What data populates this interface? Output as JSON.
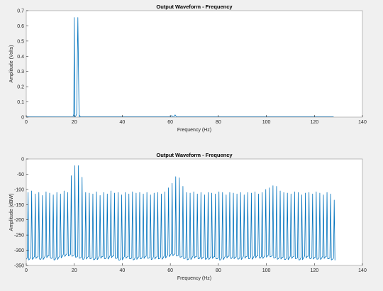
{
  "colors": {
    "series": "#0072bd",
    "background": "#f0f0f0",
    "axes_bg": "#ffffff",
    "axis": "#262626"
  },
  "chart_data": [
    {
      "type": "line",
      "title": "Output Waveform - Frequency",
      "xlabel": "Frequency (Hz)",
      "ylabel": "Amplitude (Volts)",
      "xlim": [
        0,
        140
      ],
      "ylim": [
        0,
        0.7
      ],
      "xticks": [
        0,
        20,
        40,
        60,
        80,
        100,
        120,
        140
      ],
      "yticks": [
        0,
        0.1,
        0.2,
        0.3,
        0.4,
        0.5,
        0.6,
        0.7
      ],
      "grid": false,
      "series": [
        {
          "x": [
            0,
            19.5,
            19.8,
            20,
            20.2,
            20.5,
            21,
            21.5,
            22,
            22.3,
            22.5,
            60,
            60.6,
            61,
            61.5,
            62,
            62.5,
            63,
            128
          ],
          "y": [
            0.002,
            0.003,
            0.02,
            0.655,
            0.003,
            0.003,
            0.02,
            0.655,
            0.003,
            0.01,
            0.002,
            0.002,
            0.01,
            0.002,
            0.003,
            0.015,
            0.003,
            0.002,
            0.002
          ]
        }
      ]
    },
    {
      "type": "line",
      "title": "Output Waveform - Frequency",
      "xlabel": "Frequency (Hz)",
      "ylabel": "Amplitude (dBW)",
      "xlim": [
        0,
        140
      ],
      "ylim": [
        -350,
        0
      ],
      "xticks": [
        0,
        20,
        40,
        60,
        80,
        100,
        120,
        140
      ],
      "yticks": [
        0,
        -50,
        -100,
        -150,
        -200,
        -250,
        -300,
        -350
      ],
      "grid": false,
      "series": [
        {
          "x_start": 0,
          "x_step": 1.5,
          "spike_values": [
            -110,
            -105,
            -115,
            -110,
            -120,
            -108,
            -112,
            -118,
            -110,
            -115,
            -105,
            -110,
            -55,
            -22,
            -22,
            -60,
            -110,
            -112,
            -115,
            -108,
            -120,
            -110,
            -115,
            -105,
            -112,
            -110,
            -118,
            -110,
            -115,
            -108,
            -112,
            -110,
            -115,
            -110,
            -118,
            -112,
            -110,
            -115,
            -108,
            -95,
            -80,
            -58,
            -62,
            -90,
            -110,
            -112,
            -108,
            -115,
            -110,
            -118,
            -110,
            -112,
            -115,
            -108,
            -110,
            -118,
            -110,
            -112,
            -115,
            -110,
            -118,
            -110,
            -112,
            -108,
            -115,
            -110,
            -100,
            -95,
            -88,
            -90,
            -105,
            -110,
            -112,
            -115,
            -108,
            -110,
            -118,
            -112,
            -110,
            -115,
            -108,
            -112,
            -118,
            -110,
            -115,
            -135
          ],
          "floor_values": [
            -330,
            -328,
            -326,
            -322,
            -330,
            -325,
            -318,
            -327,
            -331,
            -324,
            -320,
            -315,
            -316,
            -318,
            -322,
            -325,
            -329,
            -323,
            -327,
            -330,
            -326,
            -321,
            -328,
            -324,
            -319,
            -327,
            -332,
            -325,
            -322,
            -328,
            -330,
            -324,
            -327,
            -321,
            -326,
            -329,
            -323,
            -328,
            -325,
            -320,
            -316,
            -314,
            -318,
            -322,
            -327,
            -330,
            -325,
            -321,
            -328,
            -324,
            -329,
            -326,
            -322,
            -328,
            -331,
            -325,
            -320,
            -327,
            -323,
            -329,
            -326,
            -321,
            -328,
            -325,
            -319,
            -326,
            -322,
            -318,
            -320,
            -325,
            -328,
            -324,
            -330,
            -326,
            -322,
            -327,
            -331,
            -325,
            -320,
            -328,
            -324,
            -329,
            -326,
            -322,
            -328,
            -330
          ]
        }
      ]
    }
  ]
}
